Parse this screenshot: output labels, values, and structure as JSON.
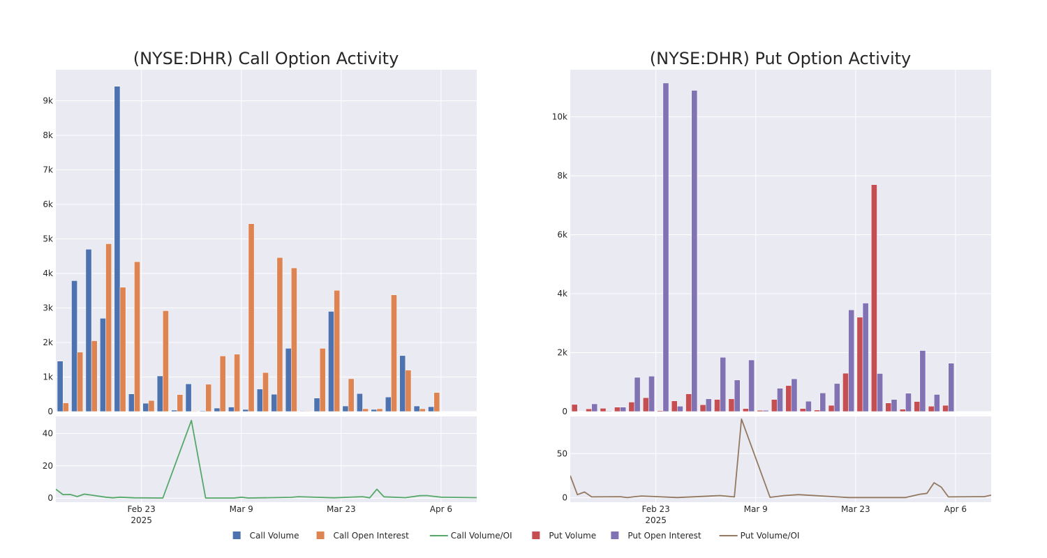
{
  "colors": {
    "call_volume": "#4c72b0",
    "call_open_interest": "#dd8452",
    "call_ratio": "#55a868",
    "put_volume": "#c44e52",
    "put_open_interest": "#8172b3",
    "put_ratio": "#937860",
    "plot_bg": "#eaeaf2",
    "grid": "#ffffff",
    "text": "#262626"
  },
  "legend": {
    "placement": "bottom-center",
    "items": [
      {
        "label": "Call Volume",
        "kind": "box",
        "color_key": "call_volume"
      },
      {
        "label": "Call Open Interest",
        "kind": "box",
        "color_key": "call_open_interest"
      },
      {
        "label": "Call Volume/OI",
        "kind": "line",
        "color_key": "call_ratio"
      },
      {
        "label": "Put Volume",
        "kind": "box",
        "color_key": "put_volume"
      },
      {
        "label": "Put Open Interest",
        "kind": "box",
        "color_key": "put_open_interest"
      },
      {
        "label": "Put Volume/OI",
        "kind": "line",
        "color_key": "put_ratio"
      }
    ]
  },
  "chart_data": [
    {
      "type": "bar",
      "title": "(NYSE:DHR) Call Option Activity",
      "grid": true,
      "x_axis": {
        "range": [
          "2025-02-11",
          "2025-04-11"
        ],
        "ticks": [
          {
            "date": "2025-02-23",
            "label": "Feb 23",
            "sublabel": "2025"
          },
          {
            "date": "2025-03-09",
            "label": "Mar 9",
            "sublabel": ""
          },
          {
            "date": "2025-03-23",
            "label": "Mar 23",
            "sublabel": ""
          },
          {
            "date": "2025-04-06",
            "label": "Apr 6",
            "sublabel": ""
          }
        ]
      },
      "bar_panel": {
        "ylim": [
          0,
          9900
        ],
        "yticks": [
          {
            "v": 0,
            "label": "0"
          },
          {
            "v": 1000,
            "label": "1k"
          },
          {
            "v": 2000,
            "label": "2k"
          },
          {
            "v": 3000,
            "label": "3k"
          },
          {
            "v": 4000,
            "label": "4k"
          },
          {
            "v": 5000,
            "label": "5k"
          },
          {
            "v": 6000,
            "label": "6k"
          },
          {
            "v": 7000,
            "label": "7k"
          },
          {
            "v": 8000,
            "label": "8k"
          },
          {
            "v": 9000,
            "label": "9k"
          }
        ],
        "series": [
          {
            "name": "Call Volume",
            "color_key": "call_volume",
            "points": [
              [
                "2025-02-12",
                1460
              ],
              [
                "2025-02-14",
                3790
              ],
              [
                "2025-02-16",
                4700
              ],
              [
                "2025-02-18",
                2700
              ],
              [
                "2025-02-20",
                9420
              ],
              [
                "2025-02-22",
                510
              ],
              [
                "2025-02-24",
                240
              ],
              [
                "2025-02-26",
                1030
              ],
              [
                "2025-02-28",
                40
              ],
              [
                "2025-03-02",
                800
              ],
              [
                "2025-03-04",
                20
              ],
              [
                "2025-03-06",
                100
              ],
              [
                "2025-03-08",
                130
              ],
              [
                "2025-03-10",
                60
              ],
              [
                "2025-03-12",
                650
              ],
              [
                "2025-03-14",
                500
              ],
              [
                "2025-03-16",
                1830
              ],
              [
                "2025-03-18",
                15
              ],
              [
                "2025-03-20",
                390
              ],
              [
                "2025-03-22",
                2900
              ],
              [
                "2025-03-24",
                160
              ],
              [
                "2025-03-26",
                520
              ],
              [
                "2025-03-28",
                60
              ],
              [
                "2025-03-30",
                420
              ],
              [
                "2025-04-01",
                1620
              ],
              [
                "2025-04-03",
                160
              ],
              [
                "2025-04-05",
                140
              ]
            ]
          },
          {
            "name": "Call Open Interest",
            "color_key": "call_open_interest",
            "points": [
              [
                "2025-02-12",
                250
              ],
              [
                "2025-02-14",
                1720
              ],
              [
                "2025-02-16",
                2050
              ],
              [
                "2025-02-18",
                4860
              ],
              [
                "2025-02-20",
                3600
              ],
              [
                "2025-02-22",
                4340
              ],
              [
                "2025-02-24",
                320
              ],
              [
                "2025-02-26",
                2920
              ],
              [
                "2025-02-28",
                490
              ],
              [
                "2025-03-02",
                15
              ],
              [
                "2025-03-04",
                790
              ],
              [
                "2025-03-06",
                1610
              ],
              [
                "2025-03-08",
                1660
              ],
              [
                "2025-03-10",
                5440
              ],
              [
                "2025-03-12",
                1130
              ],
              [
                "2025-03-14",
                4460
              ],
              [
                "2025-03-16",
                4160
              ],
              [
                "2025-03-18",
                15
              ],
              [
                "2025-03-20",
                1830
              ],
              [
                "2025-03-22",
                3510
              ],
              [
                "2025-03-24",
                950
              ],
              [
                "2025-03-26",
                80
              ],
              [
                "2025-03-28",
                80
              ],
              [
                "2025-03-30",
                3380
              ],
              [
                "2025-04-01",
                1200
              ],
              [
                "2025-04-03",
                80
              ],
              [
                "2025-04-05",
                550
              ]
            ]
          }
        ]
      },
      "line_panel": {
        "name": "Call Volume/OI",
        "color_key": "call_ratio",
        "ylim": [
          -2.5,
          50.5
        ],
        "yticks": [
          {
            "v": 0,
            "label": "0"
          },
          {
            "v": 20,
            "label": "20"
          },
          {
            "v": 40,
            "label": "40"
          }
        ],
        "points": [
          [
            "2025-02-11",
            5.5
          ],
          [
            "2025-02-12",
            2.2
          ],
          [
            "2025-02-13",
            2.3
          ],
          [
            "2025-02-14",
            1.0
          ],
          [
            "2025-02-15",
            2.5
          ],
          [
            "2025-02-18",
            0.6
          ],
          [
            "2025-02-19",
            0.2
          ],
          [
            "2025-02-20",
            0.6
          ],
          [
            "2025-02-22",
            0.2
          ],
          [
            "2025-02-26",
            0.1
          ],
          [
            "2025-03-02",
            48
          ],
          [
            "2025-03-04",
            0.1
          ],
          [
            "2025-03-08",
            0.1
          ],
          [
            "2025-03-09",
            0.6
          ],
          [
            "2025-03-10",
            0.1
          ],
          [
            "2025-03-16",
            0.5
          ],
          [
            "2025-03-17",
            0.9
          ],
          [
            "2025-03-22",
            0.2
          ],
          [
            "2025-03-26",
            0.9
          ],
          [
            "2025-03-27",
            0.2
          ],
          [
            "2025-03-28",
            5.5
          ],
          [
            "2025-03-29",
            0.8
          ],
          [
            "2025-04-01",
            0.3
          ],
          [
            "2025-04-03",
            1.5
          ],
          [
            "2025-04-04",
            1.6
          ],
          [
            "2025-04-06",
            0.6
          ],
          [
            "2025-04-11",
            0.3
          ]
        ]
      }
    },
    {
      "type": "bar",
      "title": "(NYSE:DHR) Put Option Activity",
      "grid": true,
      "x_axis": {
        "range": [
          "2025-02-11",
          "2025-04-11"
        ],
        "ticks": [
          {
            "date": "2025-02-23",
            "label": "Feb 23",
            "sublabel": "2025"
          },
          {
            "date": "2025-03-09",
            "label": "Mar 9",
            "sublabel": ""
          },
          {
            "date": "2025-03-23",
            "label": "Mar 23",
            "sublabel": ""
          },
          {
            "date": "2025-04-06",
            "label": "Apr 6",
            "sublabel": ""
          }
        ]
      },
      "bar_panel": {
        "ylim": [
          0,
          11600
        ],
        "yticks": [
          {
            "v": 0,
            "label": "0"
          },
          {
            "v": 2000,
            "label": "2k"
          },
          {
            "v": 4000,
            "label": "4k"
          },
          {
            "v": 6000,
            "label": "6k"
          },
          {
            "v": 8000,
            "label": "8k"
          },
          {
            "v": 10000,
            "label": "10k"
          }
        ],
        "series": [
          {
            "name": "Put Volume",
            "color_key": "put_volume",
            "points": [
              [
                "2025-02-12",
                240
              ],
              [
                "2025-02-14",
                90
              ],
              [
                "2025-02-16",
                110
              ],
              [
                "2025-02-18",
                150
              ],
              [
                "2025-02-20",
                320
              ],
              [
                "2025-02-22",
                470
              ],
              [
                "2025-02-24",
                30
              ],
              [
                "2025-02-26",
                360
              ],
              [
                "2025-02-28",
                600
              ],
              [
                "2025-03-02",
                230
              ],
              [
                "2025-03-04",
                410
              ],
              [
                "2025-03-06",
                430
              ],
              [
                "2025-03-08",
                100
              ],
              [
                "2025-03-10",
                40
              ],
              [
                "2025-03-12",
                410
              ],
              [
                "2025-03-14",
                880
              ],
              [
                "2025-03-16",
                100
              ],
              [
                "2025-03-18",
                50
              ],
              [
                "2025-03-20",
                210
              ],
              [
                "2025-03-22",
                1300
              ],
              [
                "2025-03-24",
                3200
              ],
              [
                "2025-03-26",
                7700
              ],
              [
                "2025-03-28",
                290
              ],
              [
                "2025-03-30",
                80
              ],
              [
                "2025-04-01",
                340
              ],
              [
                "2025-04-03",
                180
              ],
              [
                "2025-04-05",
                210
              ]
            ]
          },
          {
            "name": "Put Open Interest",
            "color_key": "put_open_interest",
            "points": [
              [
                "2025-02-12",
                10
              ],
              [
                "2025-02-14",
                260
              ],
              [
                "2025-02-16",
                20
              ],
              [
                "2025-02-18",
                150
              ],
              [
                "2025-02-20",
                1160
              ],
              [
                "2025-02-22",
                1200
              ],
              [
                "2025-02-24",
                11150
              ],
              [
                "2025-02-26",
                180
              ],
              [
                "2025-02-28",
                10900
              ],
              [
                "2025-03-02",
                430
              ],
              [
                "2025-03-04",
                1840
              ],
              [
                "2025-03-06",
                1070
              ],
              [
                "2025-03-08",
                1750
              ],
              [
                "2025-03-10",
                40
              ],
              [
                "2025-03-12",
                790
              ],
              [
                "2025-03-14",
                1110
              ],
              [
                "2025-03-16",
                350
              ],
              [
                "2025-03-18",
                630
              ],
              [
                "2025-03-20",
                950
              ],
              [
                "2025-03-22",
                3450
              ],
              [
                "2025-03-24",
                3680
              ],
              [
                "2025-03-26",
                1290
              ],
              [
                "2025-03-28",
                410
              ],
              [
                "2025-03-30",
                620
              ],
              [
                "2025-04-01",
                2070
              ],
              [
                "2025-04-03",
                580
              ],
              [
                "2025-04-05",
                1640
              ]
            ]
          }
        ]
      },
      "line_panel": {
        "name": "Put Volume/OI",
        "color_key": "put_ratio",
        "ylim": [
          -5,
          92
        ],
        "yticks": [
          {
            "v": 0,
            "label": "0"
          },
          {
            "v": 50,
            "label": "50"
          }
        ],
        "points": [
          [
            "2025-02-11",
            25
          ],
          [
            "2025-02-12",
            3.5
          ],
          [
            "2025-02-13",
            6.5
          ],
          [
            "2025-02-14",
            1.0
          ],
          [
            "2025-02-18",
            1.2
          ],
          [
            "2025-02-19",
            0.2
          ],
          [
            "2025-02-20",
            1.2
          ],
          [
            "2025-02-21",
            2.0
          ],
          [
            "2025-02-26",
            0.3
          ],
          [
            "2025-03-04",
            2.5
          ],
          [
            "2025-03-06",
            1.0
          ],
          [
            "2025-03-07",
            89
          ],
          [
            "2025-03-11",
            0.5
          ],
          [
            "2025-03-13",
            2.5
          ],
          [
            "2025-03-15",
            3.5
          ],
          [
            "2025-03-20",
            1.2
          ],
          [
            "2025-03-22",
            0.3
          ],
          [
            "2025-03-30",
            0.3
          ],
          [
            "2025-04-01",
            4.0
          ],
          [
            "2025-04-02",
            5.0
          ],
          [
            "2025-04-03",
            17
          ],
          [
            "2025-04-04",
            12
          ],
          [
            "2025-04-05",
            1.0
          ],
          [
            "2025-04-09",
            1.2
          ],
          [
            "2025-04-10",
            1.2
          ],
          [
            "2025-04-13",
            6.5
          ],
          [
            "2025-04-14",
            0.3
          ],
          [
            "2025-04-17",
            0.6
          ]
        ]
      }
    }
  ]
}
